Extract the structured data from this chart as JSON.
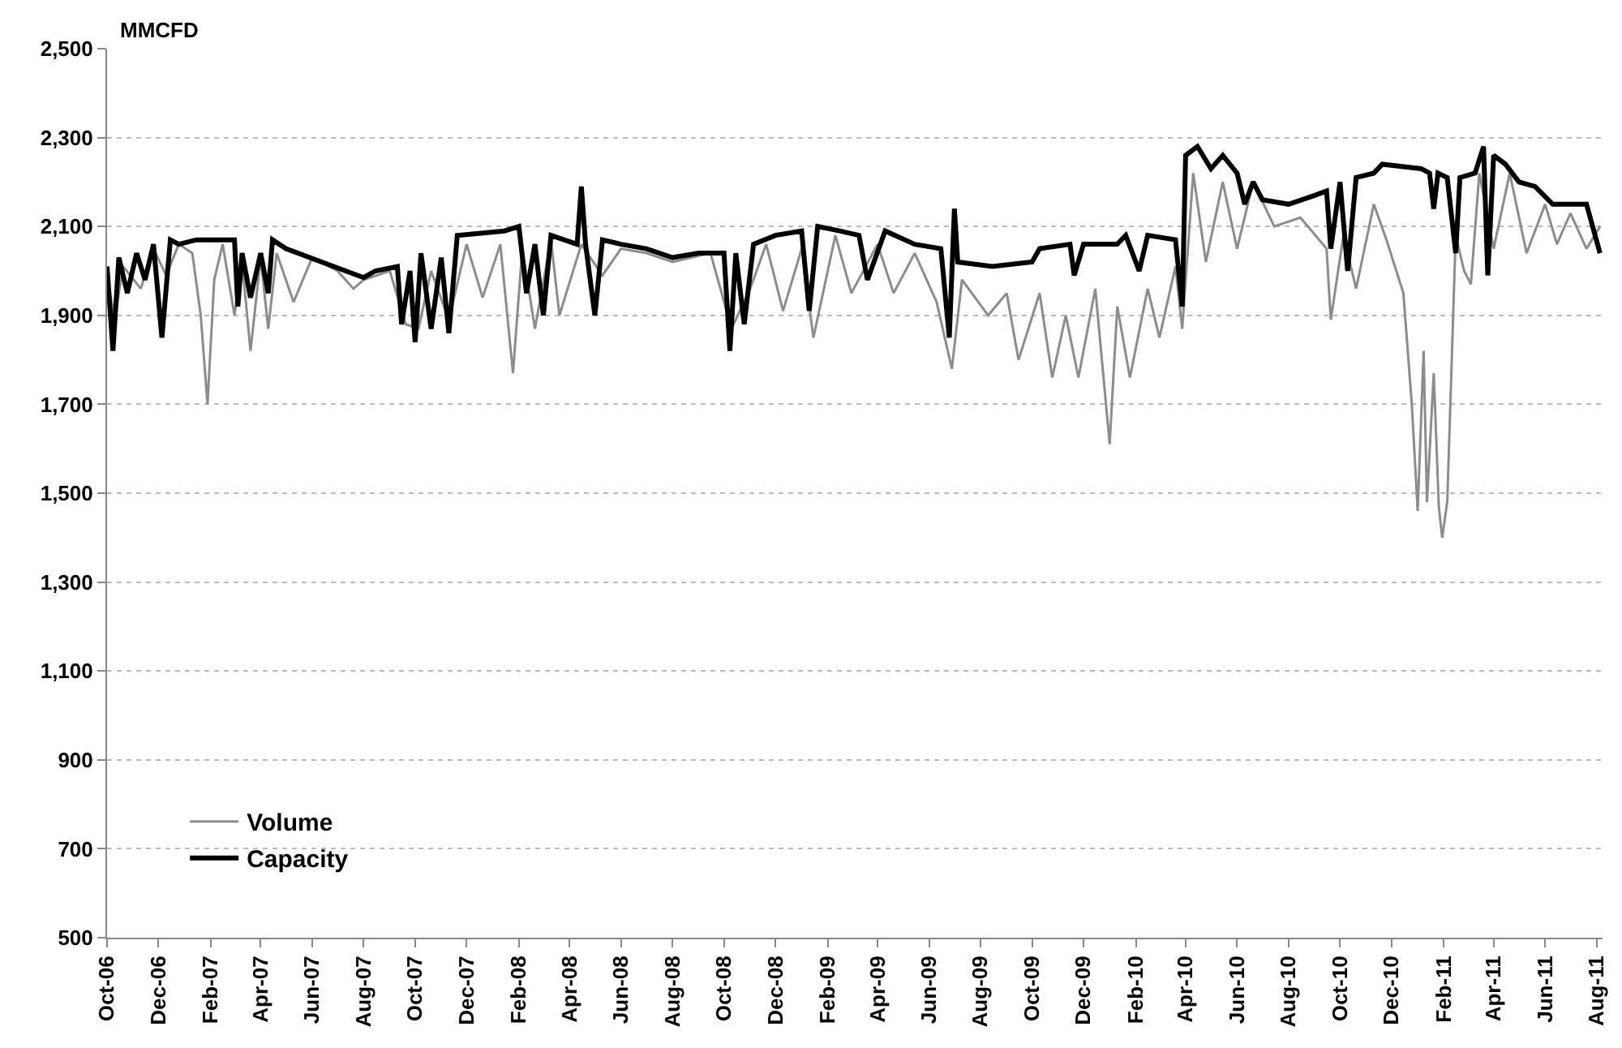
{
  "chart_data": {
    "type": "line",
    "ylabel": "MMCFD",
    "xlim": [
      "2006-10-01",
      "2011-08-08"
    ],
    "ylim": [
      500,
      2500
    ],
    "xticks": [
      {
        "value": "2006-10-01",
        "label": "Oct-06"
      },
      {
        "value": "2006-12-01",
        "label": "Dec-06"
      },
      {
        "value": "2007-02-01",
        "label": "Feb-07"
      },
      {
        "value": "2007-04-01",
        "label": "Apr-07"
      },
      {
        "value": "2007-06-01",
        "label": "Jun-07"
      },
      {
        "value": "2007-08-01",
        "label": "Aug-07"
      },
      {
        "value": "2007-10-01",
        "label": "Oct-07"
      },
      {
        "value": "2007-12-01",
        "label": "Dec-07"
      },
      {
        "value": "2008-02-01",
        "label": "Feb-08"
      },
      {
        "value": "2008-04-01",
        "label": "Apr-08"
      },
      {
        "value": "2008-06-01",
        "label": "Jun-08"
      },
      {
        "value": "2008-08-01",
        "label": "Aug-08"
      },
      {
        "value": "2008-10-01",
        "label": "Oct-08"
      },
      {
        "value": "2008-12-01",
        "label": "Dec-08"
      },
      {
        "value": "2009-02-01",
        "label": "Feb-09"
      },
      {
        "value": "2009-04-01",
        "label": "Apr-09"
      },
      {
        "value": "2009-06-01",
        "label": "Jun-09"
      },
      {
        "value": "2009-08-01",
        "label": "Aug-09"
      },
      {
        "value": "2009-10-01",
        "label": "Oct-09"
      },
      {
        "value": "2009-12-01",
        "label": "Dec-09"
      },
      {
        "value": "2010-02-01",
        "label": "Feb-10"
      },
      {
        "value": "2010-04-01",
        "label": "Apr-10"
      },
      {
        "value": "2010-06-01",
        "label": "Jun-10"
      },
      {
        "value": "2010-08-01",
        "label": "Aug-10"
      },
      {
        "value": "2010-10-01",
        "label": "Oct-10"
      },
      {
        "value": "2010-12-01",
        "label": "Dec-10"
      },
      {
        "value": "2011-02-01",
        "label": "Feb-11"
      },
      {
        "value": "2011-04-01",
        "label": "Apr-11"
      },
      {
        "value": "2011-06-01",
        "label": "Jun-11"
      },
      {
        "value": "2011-08-01",
        "label": "Aug-11"
      }
    ],
    "yticks": [
      500,
      {
        "value": 700,
        "label": "700"
      },
      {
        "value": 900,
        "label": "900"
      },
      {
        "value": 1100,
        "label": "1,100"
      },
      {
        "value": 1300,
        "label": "1,300"
      },
      {
        "value": 1500,
        "label": "1,500"
      },
      {
        "value": 1700,
        "label": "1,700"
      },
      {
        "value": 1900,
        "label": "1,900"
      },
      {
        "value": 2100,
        "label": "2,100"
      },
      {
        "value": 2300,
        "label": "2,300"
      },
      {
        "value": 2500,
        "label": "2,500"
      }
    ],
    "grid": "y",
    "legend": "bottom left",
    "marker": "none",
    "line_style": "solid",
    "series": [
      {
        "name": "Volume",
        "color": "#8c8c8c",
        "x": [
          "2006-10-01",
          "2006-10-10",
          "2006-10-20",
          "2006-11-10",
          "2006-11-25",
          "2006-12-10",
          "2006-12-25",
          "2007-01-10",
          "2007-01-20",
          "2007-01-28",
          "2007-02-05",
          "2007-02-15",
          "2007-03-01",
          "2007-03-10",
          "2007-03-20",
          "2007-04-01",
          "2007-04-10",
          "2007-04-20",
          "2007-05-10",
          "2007-06-01",
          "2007-07-01",
          "2007-07-20",
          "2007-08-01",
          "2007-09-01",
          "2007-09-20",
          "2007-10-05",
          "2007-10-20",
          "2007-11-10",
          "2007-12-01",
          "2007-12-20",
          "2008-01-10",
          "2008-01-25",
          "2008-02-05",
          "2008-02-20",
          "2008-03-10",
          "2008-03-20",
          "2008-04-15",
          "2008-05-10",
          "2008-06-01",
          "2008-07-01",
          "2008-08-01",
          "2008-09-15",
          "2008-10-10",
          "2008-11-01",
          "2008-11-20",
          "2008-12-10",
          "2009-01-01",
          "2009-01-15",
          "2009-02-10",
          "2009-03-01",
          "2009-04-01",
          "2009-04-20",
          "2009-05-15",
          "2009-06-10",
          "2009-06-28",
          "2009-07-10",
          "2009-08-10",
          "2009-09-01",
          "2009-09-15",
          "2009-10-10",
          "2009-10-25",
          "2009-11-10",
          "2009-11-25",
          "2009-12-15",
          "2010-01-01",
          "2010-01-10",
          "2010-01-25",
          "2010-02-15",
          "2010-03-01",
          "2010-03-20",
          "2010-03-28",
          "2010-04-10",
          "2010-04-25",
          "2010-05-15",
          "2010-06-01",
          "2010-06-20",
          "2010-07-15",
          "2010-08-15",
          "2010-09-15",
          "2010-09-20",
          "2010-10-05",
          "2010-10-20",
          "2010-11-10",
          "2010-11-25",
          "2010-12-15",
          "2010-12-25",
          "2011-01-01",
          "2011-01-08",
          "2011-01-12",
          "2011-01-20",
          "2011-01-26",
          "2011-01-30",
          "2011-02-05",
          "2011-02-15",
          "2011-02-25",
          "2011-03-05",
          "2011-03-15",
          "2011-04-01",
          "2011-04-20",
          "2011-05-10",
          "2011-06-01",
          "2011-06-15",
          "2011-07-01",
          "2011-07-20",
          "2011-08-05"
        ],
        "values": [
          1990,
          1890,
          2010,
          1960,
          2050,
          1990,
          2060,
          2040,
          1900,
          1700,
          1980,
          2060,
          1900,
          2020,
          1820,
          2030,
          1870,
          2040,
          1930,
          2030,
          2000,
          1960,
          1980,
          2000,
          1880,
          1870,
          2000,
          1890,
          2060,
          1940,
          2060,
          1770,
          2050,
          1870,
          2070,
          1900,
          2060,
          1990,
          2050,
          2040,
          2020,
          2040,
          1870,
          1960,
          2060,
          1910,
          2050,
          1850,
          2080,
          1950,
          2060,
          1950,
          2040,
          1930,
          1780,
          1980,
          1900,
          1950,
          1800,
          1950,
          1760,
          1900,
          1760,
          1960,
          1610,
          1920,
          1760,
          1960,
          1850,
          2010,
          1870,
          2220,
          2020,
          2200,
          2050,
          2200,
          2100,
          2120,
          2050,
          1890,
          2080,
          1960,
          2150,
          2070,
          1950,
          1700,
          1460,
          1820,
          1480,
          1770,
          1470,
          1400,
          1480,
          2080,
          2000,
          1970,
          2220,
          2050,
          2220,
          2040,
          2150,
          2060,
          2130,
          2050,
          2100
        ]
      },
      {
        "name": "Capacity",
        "color": "#000000",
        "x": [
          "2006-10-01",
          "2006-10-08",
          "2006-10-15",
          "2006-10-25",
          "2006-11-05",
          "2006-11-15",
          "2006-11-25",
          "2006-12-05",
          "2006-12-15",
          "2006-12-25",
          "2007-01-15",
          "2007-03-01",
          "2007-03-05",
          "2007-03-10",
          "2007-03-20",
          "2007-04-01",
          "2007-04-10",
          "2007-04-15",
          "2007-05-01",
          "2007-08-01",
          "2007-08-15",
          "2007-09-10",
          "2007-09-15",
          "2007-09-25",
          "2007-10-01",
          "2007-10-08",
          "2007-10-20",
          "2007-11-01",
          "2007-11-10",
          "2007-11-20",
          "2008-01-15",
          "2008-02-01",
          "2008-02-10",
          "2008-02-20",
          "2008-03-01",
          "2008-03-10",
          "2008-04-10",
          "2008-04-15",
          "2008-04-20",
          "2008-05-01",
          "2008-05-10",
          "2008-06-01",
          "2008-07-01",
          "2008-08-01",
          "2008-09-01",
          "2008-10-01",
          "2008-10-08",
          "2008-10-15",
          "2008-10-25",
          "2008-11-05",
          "2008-12-01",
          "2009-01-01",
          "2009-01-10",
          "2009-01-20",
          "2009-02-15",
          "2009-03-10",
          "2009-03-20",
          "2009-04-10",
          "2009-05-15",
          "2009-06-15",
          "2009-06-25",
          "2009-07-01",
          "2009-07-05",
          "2009-08-15",
          "2009-10-01",
          "2009-10-10",
          "2009-11-15",
          "2009-11-20",
          "2009-12-01",
          "2010-01-10",
          "2010-01-20",
          "2010-02-05",
          "2010-02-15",
          "2010-03-20",
          "2010-03-28",
          "2010-04-01",
          "2010-04-15",
          "2010-05-01",
          "2010-05-15",
          "2010-06-01",
          "2010-06-10",
          "2010-06-20",
          "2010-07-01",
          "2010-08-01",
          "2010-09-01",
          "2010-09-15",
          "2010-09-20",
          "2010-10-01",
          "2010-10-10",
          "2010-10-20",
          "2010-11-10",
          "2010-11-20",
          "2011-01-05",
          "2011-01-15",
          "2011-01-20",
          "2011-01-25",
          "2011-02-05",
          "2011-02-15",
          "2011-02-20",
          "2011-03-10",
          "2011-03-20",
          "2011-03-25",
          "2011-04-01",
          "2011-04-15",
          "2011-05-01",
          "2011-05-20",
          "2011-06-10",
          "2011-07-20",
          "2011-08-05"
        ],
        "values": [
          2010,
          1820,
          2030,
          1950,
          2040,
          1980,
          2060,
          1850,
          2070,
          2060,
          2070,
          2070,
          1920,
          2040,
          1940,
          2040,
          1950,
          2070,
          2050,
          1985,
          2000,
          2010,
          1880,
          2000,
          1840,
          2040,
          1870,
          2030,
          1860,
          2080,
          2090,
          2100,
          1950,
          2060,
          1900,
          2080,
          2060,
          2190,
          2060,
          1900,
          2070,
          2060,
          2050,
          2030,
          2040,
          2040,
          1820,
          2040,
          1880,
          2060,
          2080,
          2090,
          1910,
          2100,
          2090,
          2080,
          1980,
          2090,
          2060,
          2050,
          1850,
          2140,
          2020,
          2010,
          2020,
          2050,
          2060,
          1990,
          2060,
          2060,
          2080,
          2000,
          2080,
          2070,
          1920,
          2260,
          2280,
          2230,
          2260,
          2220,
          2150,
          2200,
          2160,
          2150,
          2170,
          2180,
          2050,
          2200,
          2000,
          2210,
          2220,
          2240,
          2230,
          2220,
          2140,
          2220,
          2210,
          2040,
          2210,
          2220,
          2280,
          1990,
          2260,
          2240,
          2200,
          2190,
          2150,
          2150,
          2040
        ]
      }
    ]
  }
}
